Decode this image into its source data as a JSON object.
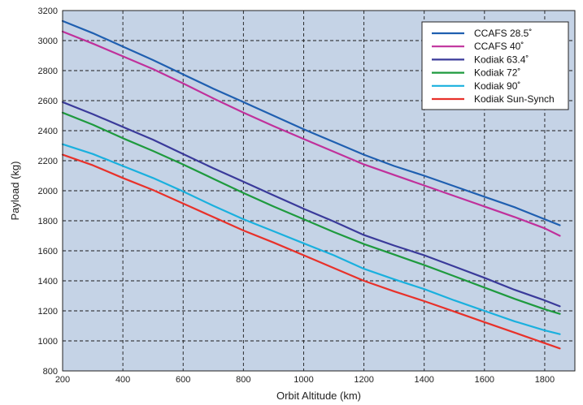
{
  "chart_data": {
    "type": "line",
    "title": "",
    "xlabel": "Orbit Altitude (km)",
    "ylabel": "Payload (kg)",
    "xlim": [
      200,
      1900
    ],
    "ylim": [
      800,
      3200
    ],
    "xticks": [
      200,
      400,
      600,
      800,
      1000,
      1200,
      1400,
      1600,
      1800
    ],
    "yticks": [
      800,
      1000,
      1200,
      1400,
      1600,
      1800,
      2000,
      2200,
      2400,
      2600,
      2800,
      3000,
      3200
    ],
    "x_tick_labels": [
      "200",
      "400",
      "600",
      "800",
      "1000",
      "1200",
      "1400",
      "1600",
      "1800"
    ],
    "y_tick_labels": [
      "800",
      "1000",
      "1200",
      "1400",
      "1600",
      "1800",
      "2000",
      "2200",
      "2400",
      "2600",
      "2800",
      "3000",
      "3200"
    ],
    "grid": true,
    "legend_position": "top-right",
    "background_color": "#c5d3e6",
    "x": [
      200,
      300,
      400,
      500,
      600,
      700,
      800,
      900,
      1000,
      1100,
      1200,
      1300,
      1400,
      1500,
      1600,
      1700,
      1800,
      1850
    ],
    "series": [
      {
        "name": "CCAFS 28.5˚",
        "color": "#1f5fb0",
        "values": [
          3130,
          3050,
          2960,
          2870,
          2775,
          2680,
          2590,
          2500,
          2410,
          2325,
          2240,
          2165,
          2100,
          2030,
          1960,
          1890,
          1810,
          1770
        ]
      },
      {
        "name": "CCAFS 40˚",
        "color": "#c0309b",
        "values": [
          3060,
          2980,
          2895,
          2810,
          2715,
          2615,
          2520,
          2430,
          2345,
          2260,
          2175,
          2105,
          2035,
          1965,
          1895,
          1825,
          1750,
          1700
        ]
      },
      {
        "name": "Kodiak 63.4˚",
        "color": "#3a3a9a",
        "values": [
          2590,
          2510,
          2425,
          2340,
          2245,
          2150,
          2060,
          1970,
          1880,
          1795,
          1705,
          1635,
          1570,
          1495,
          1420,
          1340,
          1270,
          1230
        ]
      },
      {
        "name": "Kodiak 72˚",
        "color": "#1e9a3e",
        "values": [
          2520,
          2440,
          2350,
          2265,
          2175,
          2080,
          1985,
          1895,
          1810,
          1725,
          1645,
          1575,
          1505,
          1430,
          1355,
          1280,
          1210,
          1180
        ]
      },
      {
        "name": "Kodiak 90˚",
        "color": "#1ab0de",
        "values": [
          2310,
          2245,
          2165,
          2085,
          1995,
          1900,
          1810,
          1730,
          1650,
          1570,
          1480,
          1410,
          1345,
          1270,
          1200,
          1130,
          1070,
          1045
        ]
      },
      {
        "name": "Kodiak Sun-Synch",
        "color": "#e8312a",
        "values": [
          2240,
          2170,
          2085,
          2005,
          1915,
          1825,
          1735,
          1655,
          1570,
          1485,
          1400,
          1330,
          1265,
          1195,
          1125,
          1055,
          985,
          950
        ]
      }
    ]
  }
}
